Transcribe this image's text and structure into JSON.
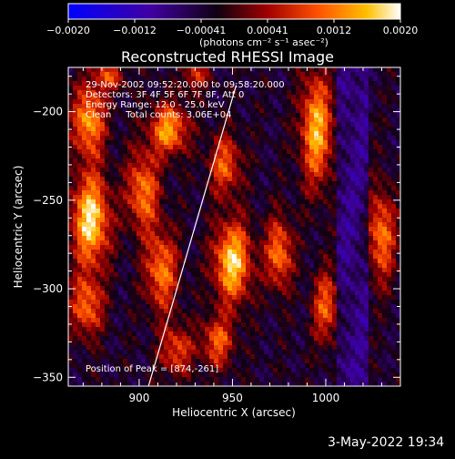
{
  "colorbar": {
    "min": -0.002,
    "max": 0.002,
    "tick_labels": [
      "−0.0020",
      "−0.0012",
      "−0.00041",
      "0.00041",
      "0.0012",
      "0.0020"
    ],
    "unit_label": "(photons cm⁻² s⁻¹ asec⁻²)"
  },
  "chart_data": {
    "type": "heatmap",
    "title": "Reconstructed RHESSI Image",
    "xlabel": "Heliocentric X (arcsec)",
    "ylabel": "Heliocentric Y (arcsec)",
    "xlim": [
      862,
      1040
    ],
    "ylim": [
      -355,
      -175
    ],
    "x_ticks": [
      900,
      950,
      1000
    ],
    "y_ticks": [
      -200,
      -250,
      -300,
      -350
    ],
    "colormap": [
      "#0000ff",
      "#40007a",
      "#000000",
      "#8b0000",
      "#ff4500",
      "#ffc000",
      "#ffffff"
    ],
    "annotations": [
      "29-Nov-2002 09:52:20.000 to 09:58:20.000",
      "Detectors: 3F 4F 5F 6F 7F 8F, Att 0",
      "Energy Range: 12.0 - 25.0 keV",
      "Clean     Total counts: 3.06E+04"
    ],
    "peak_label": "Position of Peak = [874,-261]",
    "limb_line": [
      [
        905,
        -355
      ],
      [
        952,
        -185
      ]
    ]
  },
  "footer": {
    "date": "3-May-2022 19:34"
  }
}
